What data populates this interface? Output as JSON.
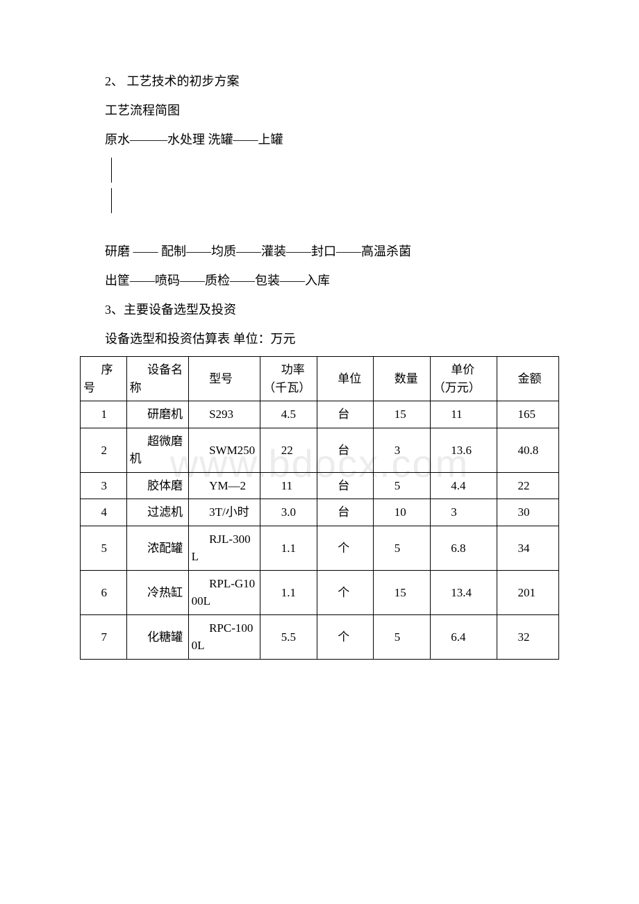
{
  "watermark": "www.bdocx.com",
  "lines": {
    "l1": "2、 工艺技术的初步方案",
    "l2": "工艺流程简图",
    "l3": "原水———水处理 洗罐——上罐",
    "l4": "研磨 —— 配制——均质——灌装——封口——高温杀菌",
    "l5": "出筐——喷码——质检——包装——入库",
    "l6": "3、主要设备选型及投资",
    "l7": "设备选型和投资估算表 单位：万元"
  },
  "table": {
    "col_widths": [
      "9%",
      "12%",
      "14%",
      "11%",
      "11%",
      "11%",
      "13%",
      "12%"
    ],
    "header": {
      "c0": "序号",
      "c1": "设备名称",
      "c2": "型号",
      "c3": "功率（千瓦）",
      "c4": "单位",
      "c5": "数量",
      "c6": "单价（万元）",
      "c7": "金额"
    },
    "rows": [
      {
        "c0": "1",
        "c1": "研磨机",
        "c2": "S293",
        "c3": "4.5",
        "c4": "台",
        "c5": "15",
        "c6": "11",
        "c7": "165"
      },
      {
        "c0": "2",
        "c1": "超微磨机",
        "c2": "SWM250",
        "c3": "22",
        "c4": "台",
        "c5": "3",
        "c6": "13.6",
        "c7": "40.8"
      },
      {
        "c0": "3",
        "c1": "胶体磨",
        "c2": "YM—2",
        "c3": "11",
        "c4": "台",
        "c5": "5",
        "c6": "4.4",
        "c7": "22"
      },
      {
        "c0": "4",
        "c1": "过滤机",
        "c2": "3T/小时",
        "c3": "3.0",
        "c4": "台",
        "c5": "10",
        "c6": "3",
        "c7": "30"
      },
      {
        "c0": "5",
        "c1": "浓配罐",
        "c2": "RJL-300L",
        "c3": "1.1",
        "c4": "个",
        "c5": "5",
        "c6": "6.8",
        "c7": "34"
      },
      {
        "c0": "6",
        "c1": "冷热缸",
        "c2": "RPL-G1000L",
        "c3": "1.1",
        "c4": "个",
        "c5": "15",
        "c6": "13.4",
        "c7": "201"
      },
      {
        "c0": "7",
        "c1": "化糖罐",
        "c2": "RPC-1000L",
        "c3": "5.5",
        "c4": "个",
        "c5": "5",
        "c6": "6.4",
        "c7": "32"
      }
    ]
  }
}
